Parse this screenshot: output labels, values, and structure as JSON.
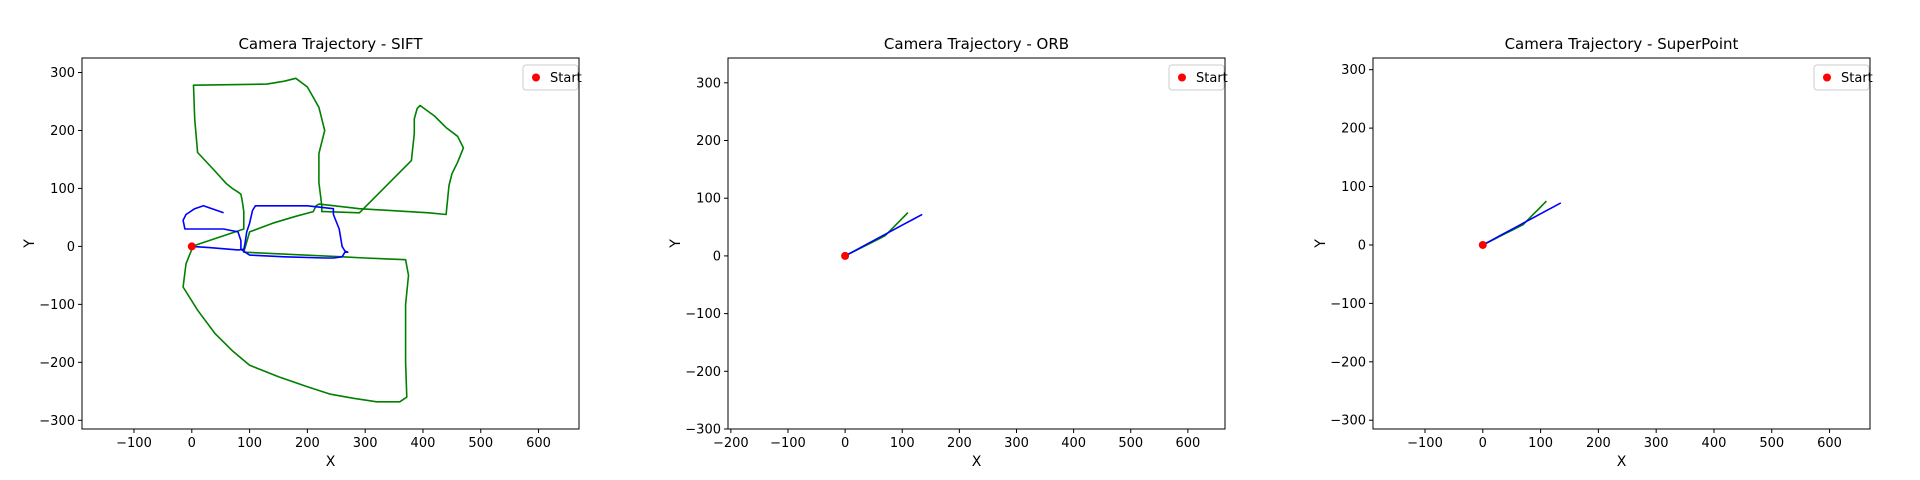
{
  "chart_data": [
    {
      "type": "line",
      "title": "Camera Trajectory - SIFT",
      "xlabel": "X",
      "ylabel": "Y",
      "xlim": [
        -190,
        670
      ],
      "ylim": [
        -315,
        325
      ],
      "xticks": [
        -100,
        0,
        100,
        200,
        300,
        400,
        500,
        600
      ],
      "yticks": [
        -300,
        -200,
        -100,
        0,
        100,
        200,
        300
      ],
      "grid": false,
      "legend": {
        "position": "top-right",
        "entries": [
          {
            "label": "Start",
            "color": "#ff0000",
            "marker": "circle"
          }
        ]
      },
      "start_point": {
        "x": 0,
        "y": 0
      },
      "series": [
        {
          "color": "#008000",
          "x": [
            0,
            90,
            90,
            87,
            85,
            78,
            70,
            60,
            40,
            10,
            5,
            3,
            130,
            160,
            180,
            200,
            220,
            230,
            220,
            220,
            225,
            225,
            230,
            290,
            380,
            385,
            385,
            390,
            395,
            420,
            440,
            460,
            470,
            460,
            450,
            445,
            440,
            410,
            290,
            230,
            220,
            215,
            210,
            180,
            140,
            100,
            90,
            260,
            300,
            370,
            375,
            370,
            370,
            372,
            360,
            320,
            280,
            240,
            200,
            150,
            100,
            70,
            40,
            10,
            -15,
            -10,
            0
          ],
          "y": [
            0,
            30,
            60,
            80,
            90,
            95,
            100,
            108,
            130,
            162,
            220,
            278,
            280,
            285,
            290,
            275,
            240,
            200,
            160,
            110,
            70,
            60,
            60,
            58,
            148,
            195,
            220,
            238,
            243,
            225,
            205,
            190,
            170,
            145,
            125,
            105,
            55,
            58,
            65,
            72,
            73,
            70,
            60,
            52,
            40,
            25,
            -10,
            -18,
            -20,
            -23,
            -50,
            -100,
            -200,
            -260,
            -268,
            -268,
            -262,
            -255,
            -242,
            -225,
            -205,
            -180,
            -150,
            -110,
            -70,
            -30,
            -5
          ]
        },
        {
          "color": "#0000ff",
          "x": [
            0,
            30,
            80,
            90,
            92,
            95,
            100,
            105,
            110,
            200,
            245,
            245,
            255,
            260,
            265,
            270,
            265,
            260,
            245,
            230,
            160,
            100,
            85,
            85,
            80,
            55,
            30,
            -12,
            -15,
            -10,
            5,
            20,
            55
          ],
          "y": [
            0,
            -2,
            -6,
            -5,
            5,
            25,
            40,
            62,
            70,
            70,
            65,
            55,
            30,
            0,
            -8,
            -10,
            -10,
            -18,
            -20,
            -20,
            -18,
            -15,
            -5,
            10,
            25,
            30,
            30,
            30,
            45,
            55,
            65,
            70,
            58
          ]
        }
      ]
    },
    {
      "type": "line",
      "title": "Camera Trajectory - ORB",
      "xlabel": "X",
      "ylabel": "Y",
      "xlim": [
        -205,
        665
      ],
      "ylim": [
        -300,
        343
      ],
      "xticks": [
        -200,
        -100,
        0,
        100,
        200,
        300,
        400,
        500,
        600
      ],
      "yticks": [
        -300,
        -200,
        -100,
        0,
        100,
        200,
        300
      ],
      "grid": false,
      "legend": {
        "position": "top-right",
        "entries": [
          {
            "label": "Start",
            "color": "#ff0000",
            "marker": "circle"
          }
        ]
      },
      "start_point": {
        "x": 0,
        "y": 0
      },
      "series": [
        {
          "color": "#008000",
          "x": [
            0,
            10,
            20,
            30,
            40,
            50,
            60,
            70,
            75,
            80,
            85,
            90,
            95,
            100,
            105,
            110
          ],
          "y": [
            0,
            5,
            10,
            15,
            20,
            25,
            30,
            35,
            40,
            45,
            50,
            55,
            60,
            65,
            70,
            75
          ]
        },
        {
          "color": "#0000ff",
          "x": [
            0,
            15,
            30,
            45,
            60,
            75,
            90,
            105,
            120,
            135
          ],
          "y": [
            0,
            8,
            16,
            24,
            32,
            40,
            48,
            56,
            64,
            72
          ]
        }
      ]
    },
    {
      "type": "line",
      "title": "Camera Trajectory - SuperPoint",
      "xlabel": "X",
      "ylabel": "Y",
      "xlim": [
        -190,
        670
      ],
      "ylim": [
        -315,
        320
      ],
      "xticks": [
        -100,
        0,
        100,
        200,
        300,
        400,
        500,
        600
      ],
      "yticks": [
        -300,
        -200,
        -100,
        0,
        100,
        200,
        300
      ],
      "grid": false,
      "legend": {
        "position": "top-right",
        "entries": [
          {
            "label": "Start",
            "color": "#ff0000",
            "marker": "circle"
          }
        ]
      },
      "start_point": {
        "x": 0,
        "y": 0
      },
      "series": [
        {
          "color": "#008000",
          "x": [
            0,
            10,
            20,
            30,
            40,
            50,
            60,
            70,
            75,
            80,
            85,
            90,
            95,
            100,
            105,
            110
          ],
          "y": [
            0,
            5,
            10,
            15,
            20,
            25,
            30,
            35,
            40,
            45,
            50,
            55,
            60,
            65,
            70,
            75
          ]
        },
        {
          "color": "#0000ff",
          "x": [
            0,
            15,
            30,
            45,
            60,
            75,
            90,
            105,
            120,
            135
          ],
          "y": [
            0,
            8,
            16,
            24,
            32,
            40,
            48,
            56,
            64,
            72
          ]
        }
      ]
    }
  ]
}
